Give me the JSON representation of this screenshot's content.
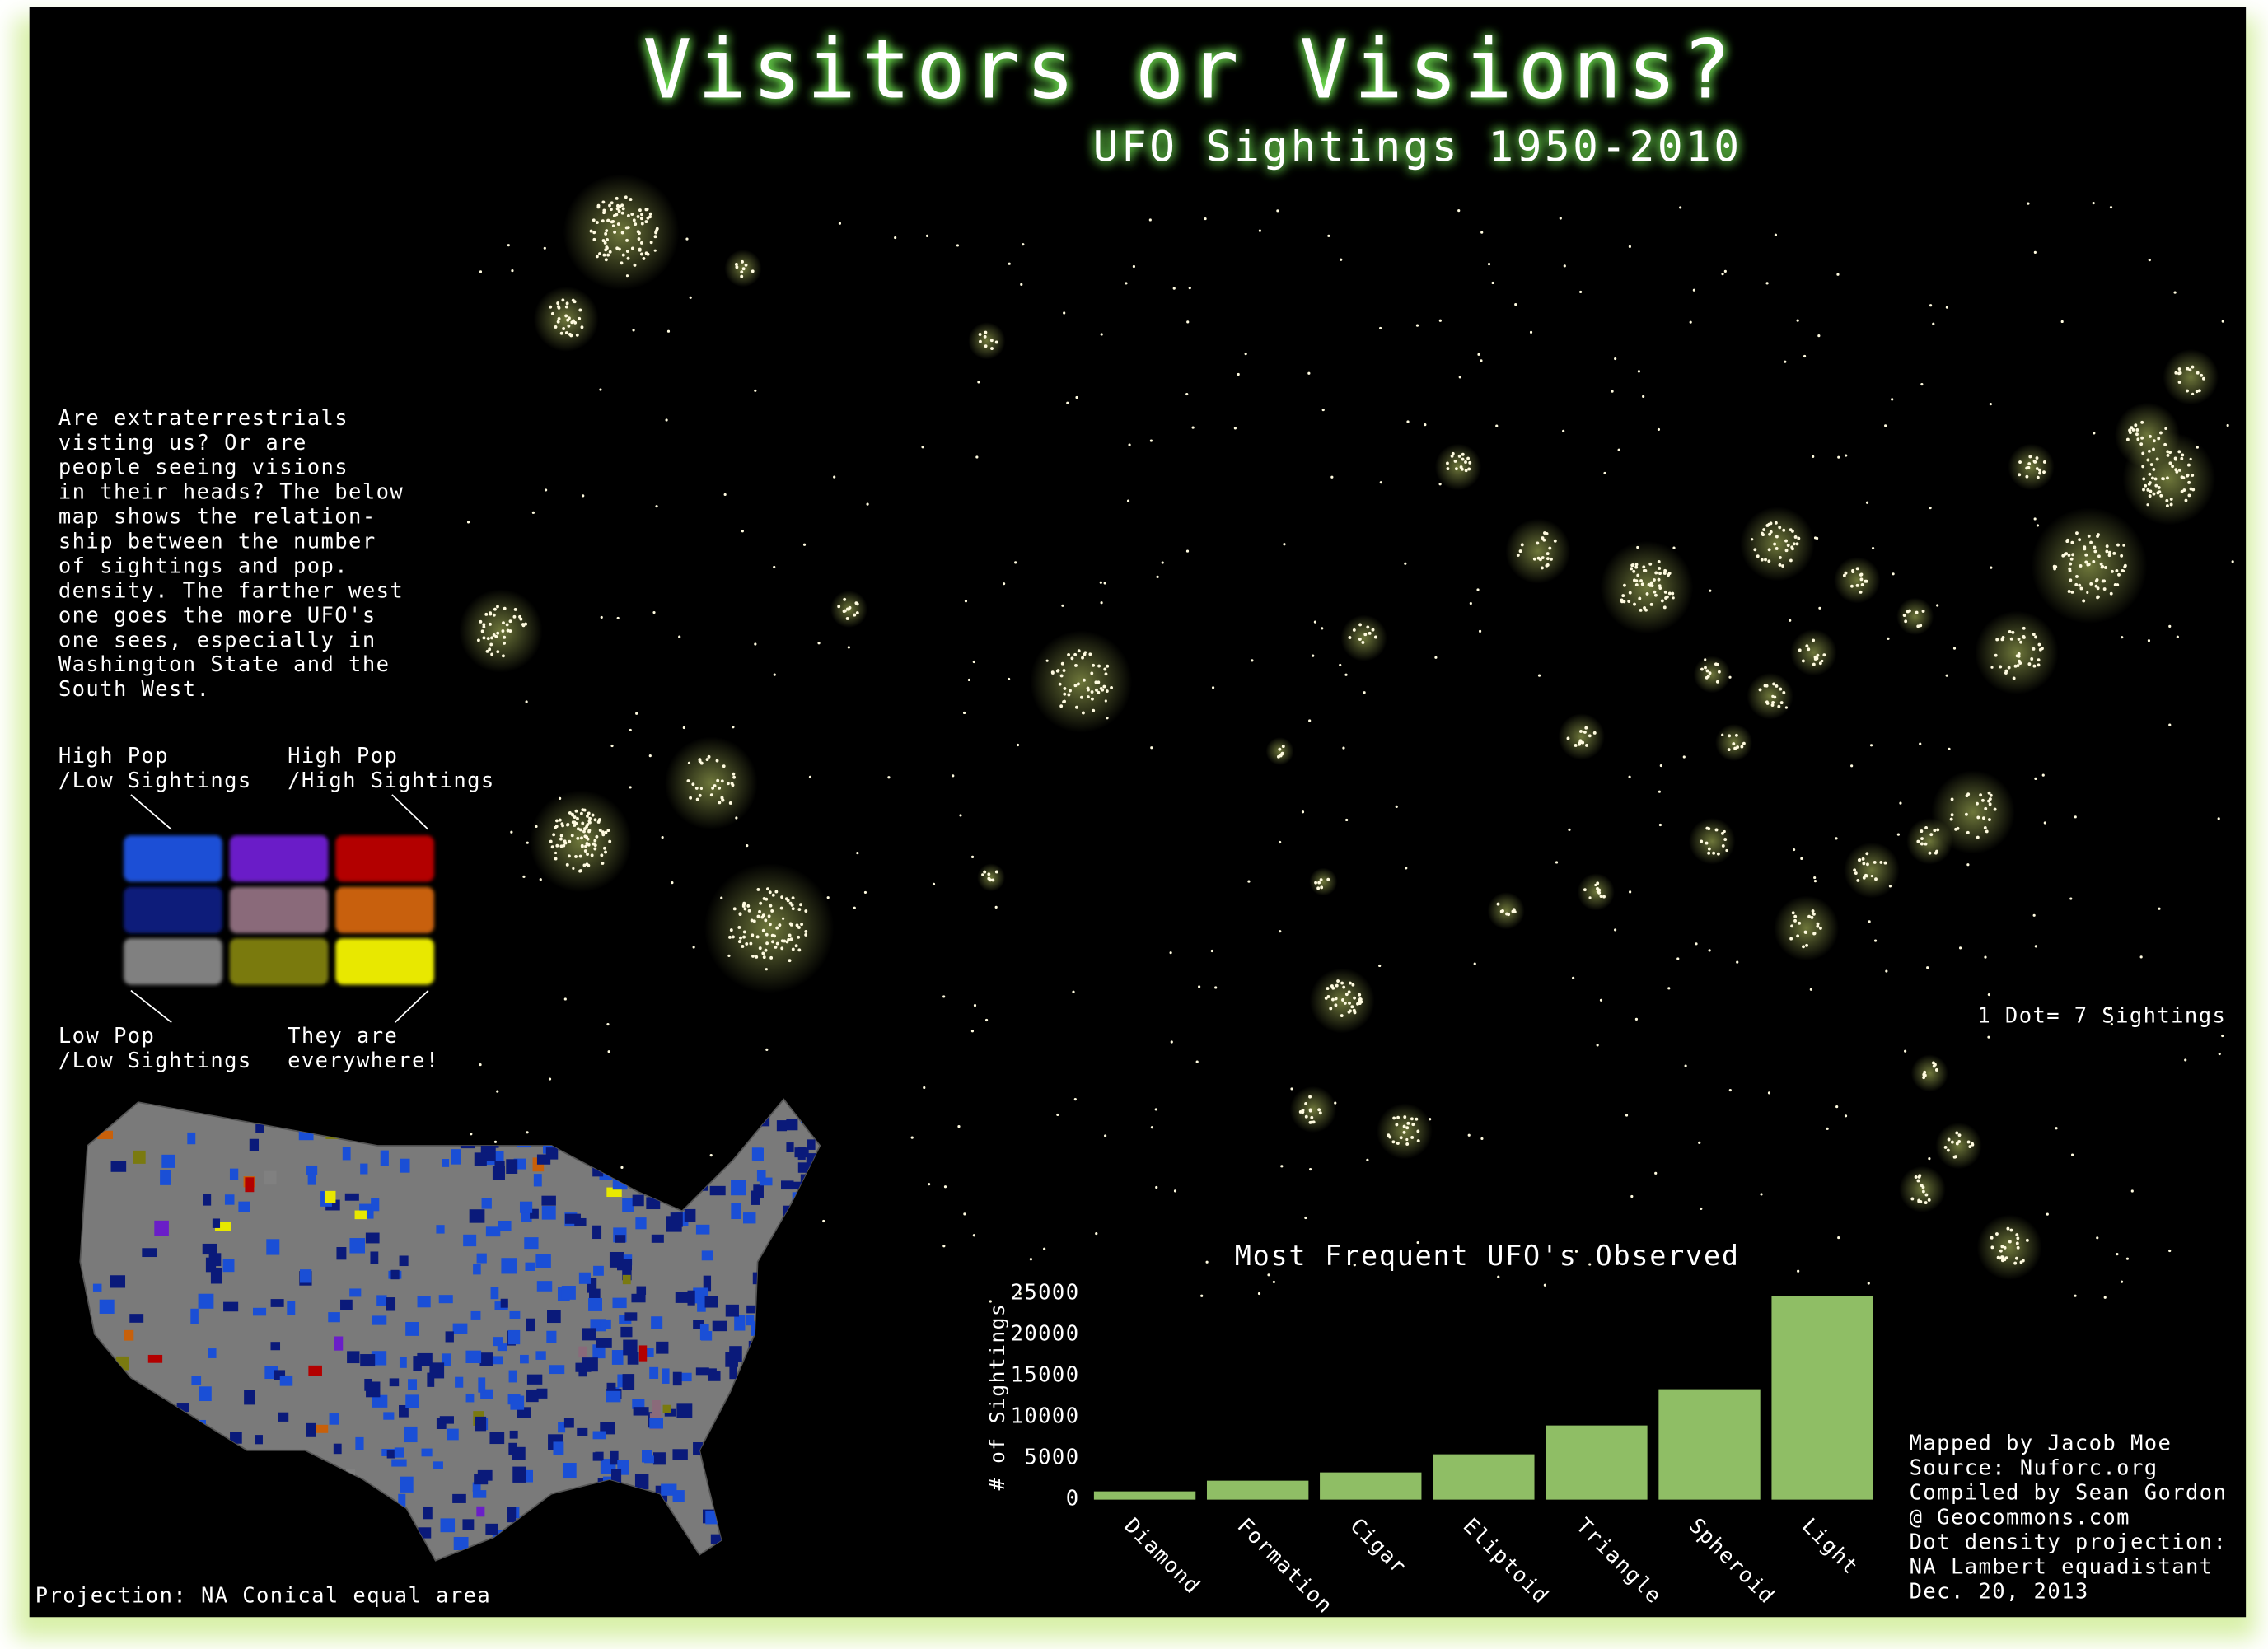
{
  "header": {
    "title": "Visitors or Visions?",
    "subtitle": "UFO Sightings 1950-2010"
  },
  "intro": [
    "Are extraterrestrials",
    "visting us? Or are",
    "people seeing visions",
    "in their heads? The below",
    "map shows the relation-",
    "ship between the number",
    "of sightings and pop.",
    "density. The farther west",
    "one goes the more UFO's",
    "one sees, especially in",
    "Washington State and the",
    "South West."
  ],
  "legend": {
    "top_left": [
      "High Pop",
      "/Low Sightings"
    ],
    "top_right": [
      "High Pop",
      "/High Sightings"
    ],
    "bottom_left": [
      "Low Pop",
      "/Low Sightings"
    ],
    "bottom_right": [
      "They are",
      "everywhere!"
    ],
    "colors": [
      [
        "#1a4fd6",
        "#6a1ec8",
        "#b30000"
      ],
      [
        "#0a1a7a",
        "#8a6a7a",
        "#c8600a"
      ],
      [
        "#808080",
        "#7a7a10",
        "#e8e800"
      ]
    ]
  },
  "dot_note": "1 Dot= 7 Sightings",
  "projection_note": "Projection: NA Conical equal area",
  "credits": [
    "Mapped by Jacob Moe",
    "Source: Nuforc.org",
    "Compiled by Sean Gordon",
    "@ Geocommons.com",
    "Dot density projection:",
    "NA Lambert equadistant",
    "Dec. 20, 2013"
  ],
  "chart_data": {
    "type": "bar",
    "title": "Most Frequent UFO's Observed",
    "y_label": "# of Sightings",
    "categories": [
      "Diamond",
      "Formation",
      "Cigar",
      "Eliptoid",
      "Triangle",
      "Spheroid",
      "Light"
    ],
    "values": [
      1000,
      2300,
      3300,
      5500,
      9000,
      13400,
      24700
    ],
    "color": "#8fbe65",
    "ylim": [
      0,
      25000
    ],
    "yticks": [
      0,
      5000,
      10000,
      15000,
      20000,
      25000
    ],
    "grid": false
  }
}
